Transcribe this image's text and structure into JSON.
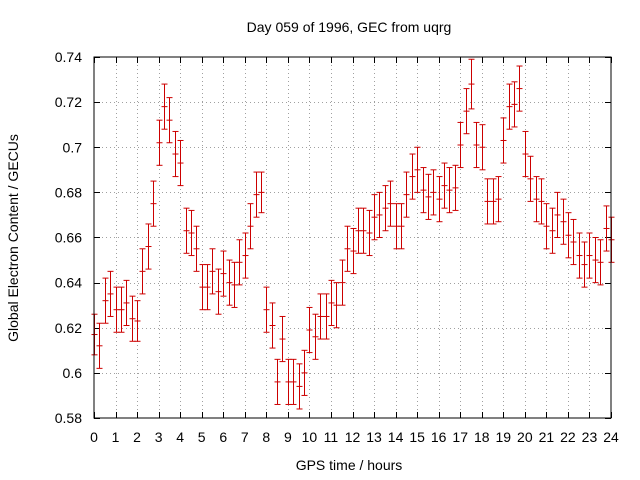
{
  "chart_data": {
    "type": "scatter",
    "title": "Day 059 of 1996, GEC from uqrg",
    "xlabel": "GPS time / hours",
    "ylabel": "Global Electron Content / GECUs",
    "xlim": [
      0,
      24
    ],
    "ylim": [
      0.58,
      0.74
    ],
    "xticks": [
      0,
      1,
      2,
      3,
      4,
      5,
      6,
      7,
      8,
      9,
      10,
      11,
      12,
      13,
      14,
      15,
      16,
      17,
      18,
      19,
      20,
      21,
      22,
      23,
      24
    ],
    "yticks": [
      0.58,
      0.6,
      0.62,
      0.64,
      0.66,
      0.68,
      0.7,
      0.72,
      0.74
    ],
    "ytick_labels": [
      "0.58",
      "0.6",
      "0.62",
      "0.64",
      "0.66",
      "0.68",
      "0.7",
      "0.72",
      "0.74"
    ],
    "grid": true,
    "color": "#cc0000",
    "series": [
      {
        "x": [
          0.0,
          0.25,
          0.5,
          0.75,
          1.0,
          1.25,
          1.5,
          1.75,
          2.0,
          2.25,
          2.5,
          2.75,
          3.0,
          3.25,
          3.5,
          3.75,
          4.0,
          4.25,
          4.5,
          4.75,
          5.0,
          5.25,
          5.5,
          5.75,
          6.0,
          6.25,
          6.5,
          6.75,
          7.0,
          7.25,
          7.5,
          7.75,
          8.0,
          8.25,
          8.5,
          8.75,
          9.0,
          9.25,
          9.5,
          9.75,
          10.0,
          10.25,
          10.5,
          10.75,
          11.0,
          11.25,
          11.5,
          11.75,
          12.0,
          12.25,
          12.5,
          12.75,
          13.0,
          13.25,
          13.5,
          13.75,
          14.0,
          14.25,
          14.5,
          14.75,
          15.0,
          15.25,
          15.5,
          15.75,
          16.0,
          16.25,
          16.5,
          16.75,
          17.0,
          17.25,
          17.5,
          17.75,
          18.0,
          18.25,
          18.5,
          18.75,
          19.0,
          19.25,
          19.5,
          19.75,
          20.0,
          20.25,
          20.5,
          20.75,
          21.0,
          21.25,
          21.5,
          21.75,
          22.0,
          22.25,
          22.5,
          22.75,
          23.0,
          23.25,
          23.5,
          23.75,
          24.0
        ],
        "y": [
          0.617,
          0.612,
          0.632,
          0.635,
          0.628,
          0.628,
          0.631,
          0.624,
          0.623,
          0.645,
          0.656,
          0.675,
          0.702,
          0.718,
          0.712,
          0.697,
          0.693,
          0.663,
          0.662,
          0.655,
          0.638,
          0.638,
          0.645,
          0.636,
          0.644,
          0.64,
          0.639,
          0.649,
          0.652,
          0.665,
          0.679,
          0.68,
          0.628,
          0.621,
          0.596,
          0.615,
          0.596,
          0.596,
          0.594,
          0.6,
          0.619,
          0.616,
          0.625,
          0.625,
          0.631,
          0.63,
          0.64,
          0.655,
          0.654,
          0.663,
          0.663,
          0.662,
          0.669,
          0.67,
          0.673,
          0.675,
          0.665,
          0.665,
          0.679,
          0.687,
          0.69,
          0.681,
          0.678,
          0.68,
          0.677,
          0.683,
          0.681,
          0.682,
          0.701,
          0.716,
          0.728,
          0.701,
          0.7,
          0.676,
          0.676,
          0.677,
          0.703,
          0.718,
          0.719,
          0.726,
          0.697,
          0.686,
          0.677,
          0.676,
          0.665,
          0.663,
          0.67,
          0.667,
          0.661,
          0.658,
          0.652,
          0.648,
          0.652,
          0.65,
          0.649,
          0.664,
          0.659
        ],
        "err": [
          0.009,
          0.01,
          0.01,
          0.01,
          0.01,
          0.01,
          0.01,
          0.01,
          0.009,
          0.01,
          0.01,
          0.01,
          0.01,
          0.01,
          0.01,
          0.01,
          0.01,
          0.01,
          0.01,
          0.01,
          0.01,
          0.01,
          0.01,
          0.01,
          0.01,
          0.01,
          0.01,
          0.01,
          0.01,
          0.01,
          0.01,
          0.009,
          0.01,
          0.01,
          0.01,
          0.01,
          0.01,
          0.01,
          0.01,
          0.01,
          0.01,
          0.01,
          0.01,
          0.01,
          0.01,
          0.01,
          0.01,
          0.01,
          0.01,
          0.01,
          0.01,
          0.01,
          0.01,
          0.01,
          0.01,
          0.01,
          0.01,
          0.01,
          0.01,
          0.01,
          0.01,
          0.01,
          0.01,
          0.01,
          0.01,
          0.01,
          0.01,
          0.01,
          0.01,
          0.01,
          0.011,
          0.01,
          0.01,
          0.01,
          0.01,
          0.01,
          0.01,
          0.01,
          0.01,
          0.01,
          0.01,
          0.01,
          0.01,
          0.01,
          0.01,
          0.01,
          0.01,
          0.01,
          0.01,
          0.01,
          0.01,
          0.01,
          0.01,
          0.01,
          0.01,
          0.01,
          0.01
        ]
      }
    ]
  }
}
